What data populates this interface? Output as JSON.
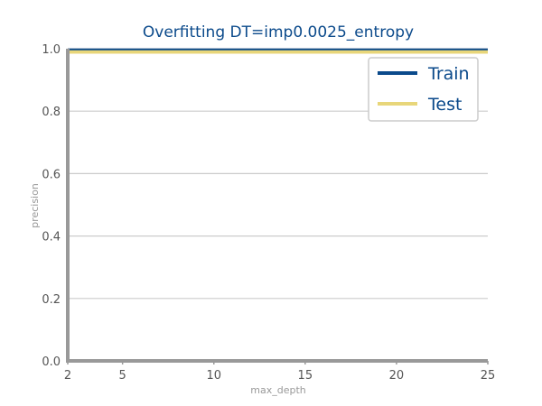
{
  "chart_data": {
    "type": "line",
    "title": "Overfitting DT=imp0.0025_entropy",
    "xlabel": "max_depth",
    "ylabel": "precision",
    "xlim": [
      2,
      25
    ],
    "ylim": [
      0.0,
      1.0
    ],
    "xticks": [
      2,
      5,
      10,
      15,
      20,
      25
    ],
    "yticks": [
      0.0,
      0.2,
      0.4,
      0.6,
      0.8,
      1.0
    ],
    "x": [
      2,
      3,
      4,
      5,
      6,
      7,
      8,
      9,
      10,
      11,
      12,
      13,
      14,
      15,
      16,
      17,
      18,
      19,
      20,
      21,
      22,
      23,
      24,
      25
    ],
    "series": [
      {
        "name": "Train",
        "color": "#0b4a8b",
        "values": [
          0.998,
          0.998,
          0.998,
          0.998,
          0.998,
          0.998,
          0.998,
          0.998,
          0.998,
          0.998,
          0.998,
          0.998,
          0.998,
          0.998,
          0.998,
          0.998,
          0.998,
          0.998,
          0.998,
          0.998,
          0.998,
          0.998,
          0.998,
          0.998
        ]
      },
      {
        "name": "Test",
        "color": "#e8d67a",
        "values": [
          0.99,
          0.99,
          0.99,
          0.99,
          0.99,
          0.99,
          0.99,
          0.99,
          0.99,
          0.99,
          0.99,
          0.99,
          0.99,
          0.99,
          0.99,
          0.99,
          0.99,
          0.99,
          0.99,
          0.99,
          0.99,
          0.99,
          0.99,
          0.99
        ]
      }
    ],
    "grid": "horizontal",
    "legend": "top-right",
    "axis_color": "#999999",
    "grid_color": "#cccccc"
  }
}
